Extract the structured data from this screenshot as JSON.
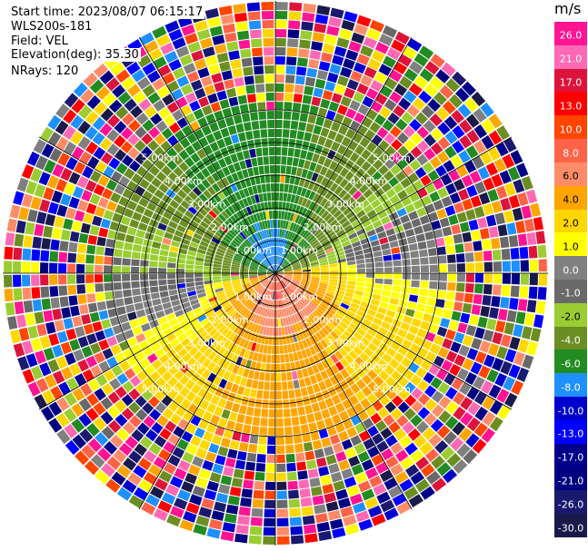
{
  "header": {
    "start_time": "Start time: 2023/08/07 06:15:17",
    "instrument": "WLS200s-181",
    "field": "Field: VEL",
    "elevation": "Elevation(deg): 35.30",
    "nrays": "NRays: 120"
  },
  "colorbar": {
    "unit": "m/s",
    "labels": [
      "26.0",
      "21.0",
      "17.0",
      "13.0",
      "10.0",
      "8.0",
      "6.0",
      "4.0",
      "2.0",
      "1.0",
      "0.0",
      "-1.0",
      "-2.0",
      "-4.0",
      "-6.0",
      "-8.0",
      "-10.0",
      "-13.0",
      "-17.0",
      "-21.0",
      "-26.0",
      "-30.0"
    ],
    "colors": [
      "#ff1493",
      "#ff69b4",
      "#dc143c",
      "#ff0000",
      "#ff4500",
      "#ff6347",
      "#ff8c69",
      "#ffa500",
      "#ffd700",
      "#ffff00",
      "#808080",
      "#696969",
      "#9acd32",
      "#6b8e23",
      "#228b22",
      "#1e90ff",
      "#0000cd",
      "#0000ff",
      "#00008b",
      "#000080",
      "#191970",
      "#1a1a4a"
    ]
  },
  "chart_data": {
    "type": "ppi",
    "field": "VEL",
    "units": "m/s",
    "nrays": 120,
    "elevation_deg": 35.3,
    "range_rings_km": [
      1.0,
      2.0,
      3.0,
      4.0,
      5.0
    ],
    "ring_labels": [
      "1.00km",
      "2.00km",
      "3.00km",
      "4.00km",
      "5.00km"
    ],
    "max_range_km": 5.0,
    "pattern": {
      "near_range_km": 3.2,
      "positive_sector_deg": [
        95,
        265
      ],
      "negative_sector_deg": [
        285,
        75
      ],
      "core_positive_ms": 8.0,
      "core_negative_ms": -6.0,
      "noise_beyond_km": 3.2
    }
  }
}
